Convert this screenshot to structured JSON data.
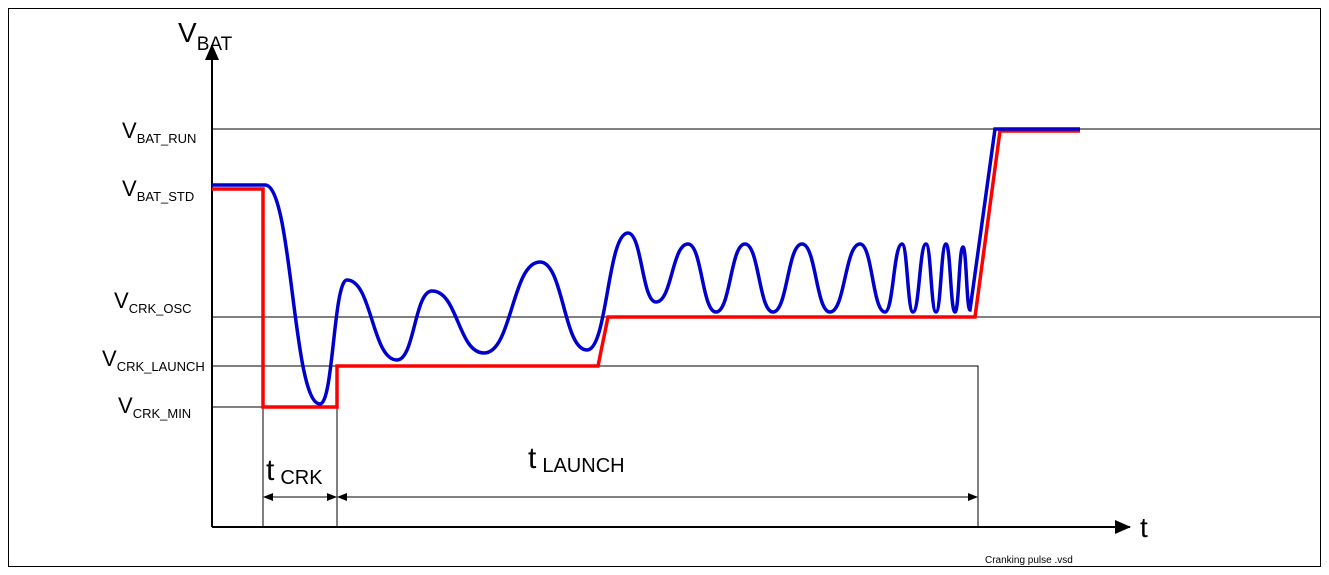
{
  "axes": {
    "y_label": {
      "main": "V",
      "sub": "BAT"
    },
    "x_label": "t"
  },
  "levels": [
    {
      "main": "V",
      "sub": "BAT_RUN"
    },
    {
      "main": "V",
      "sub": "BAT_STD"
    },
    {
      "main": "V",
      "sub": "CRK_OSC"
    },
    {
      "main": "V",
      "sub": "CRK_LAUNCH"
    },
    {
      "main": "V",
      "sub": "CRK_MIN"
    }
  ],
  "intervals": [
    {
      "main": "t",
      "sub": "CRK"
    },
    {
      "main": "t",
      "sub": "LAUNCH"
    }
  ],
  "footer": "Cranking pulse .vsd"
}
